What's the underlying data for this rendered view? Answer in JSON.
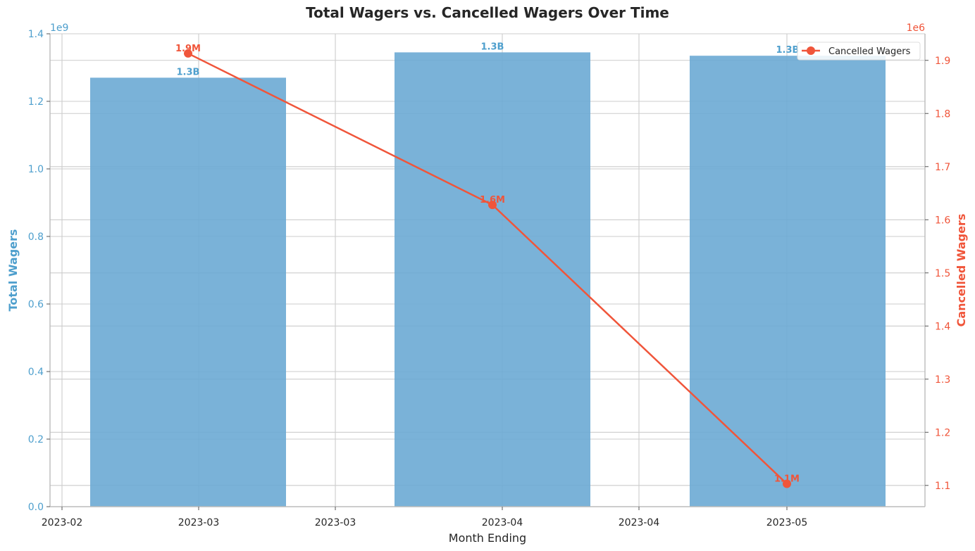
{
  "chart_data": {
    "type": "bar",
    "title": "Total Wagers vs. Cancelled Wagers Over Time",
    "xlabel": "Month Ending",
    "x_tick_labels": [
      "2023-02",
      "2023-03",
      "2023-03",
      "2023-04",
      "2023-04",
      "2023-05"
    ],
    "x_dates": [
      "2023-02-28",
      "2023-03-31",
      "2023-04-30"
    ],
    "left_axis": {
      "label": "Total Wagers",
      "offset_text": "1e9",
      "ylim": [
        0.0,
        1.4
      ],
      "ticks": [
        0.0,
        0.2,
        0.4,
        0.6,
        0.8,
        1.0,
        1.2,
        1.4
      ],
      "tick_labels": [
        "0.0",
        "0.2",
        "0.4",
        "0.6",
        "0.8",
        "1.0",
        "1.2",
        "1.4"
      ],
      "color": "#4e9fcd"
    },
    "right_axis": {
      "label": "Cancelled Wagers",
      "offset_text": "1e6",
      "ylim": [
        1.06,
        1.95
      ],
      "ticks": [
        1.1,
        1.2,
        1.3,
        1.4,
        1.5,
        1.6,
        1.7,
        1.8,
        1.9
      ],
      "tick_labels": [
        "1.1",
        "1.2",
        "1.3",
        "1.4",
        "1.5",
        "1.6",
        "1.7",
        "1.8",
        "1.9"
      ],
      "color": "#f0553a"
    },
    "series": [
      {
        "type": "bar",
        "values_e9": [
          1.27,
          1.345,
          1.335
        ],
        "data_labels": [
          "1.3B",
          "1.3B",
          "1.3B"
        ],
        "color": "#6baad4"
      },
      {
        "name": "Cancelled Wagers",
        "type": "line",
        "values_e6": [
          1.913,
          1.628,
          1.103
        ],
        "data_labels": [
          "1.9M",
          "1.6M",
          "1.1M"
        ],
        "color": "#f0553a"
      }
    ],
    "legend": {
      "position": "top-right",
      "entries": [
        "Cancelled Wagers"
      ]
    },
    "grid": true
  }
}
